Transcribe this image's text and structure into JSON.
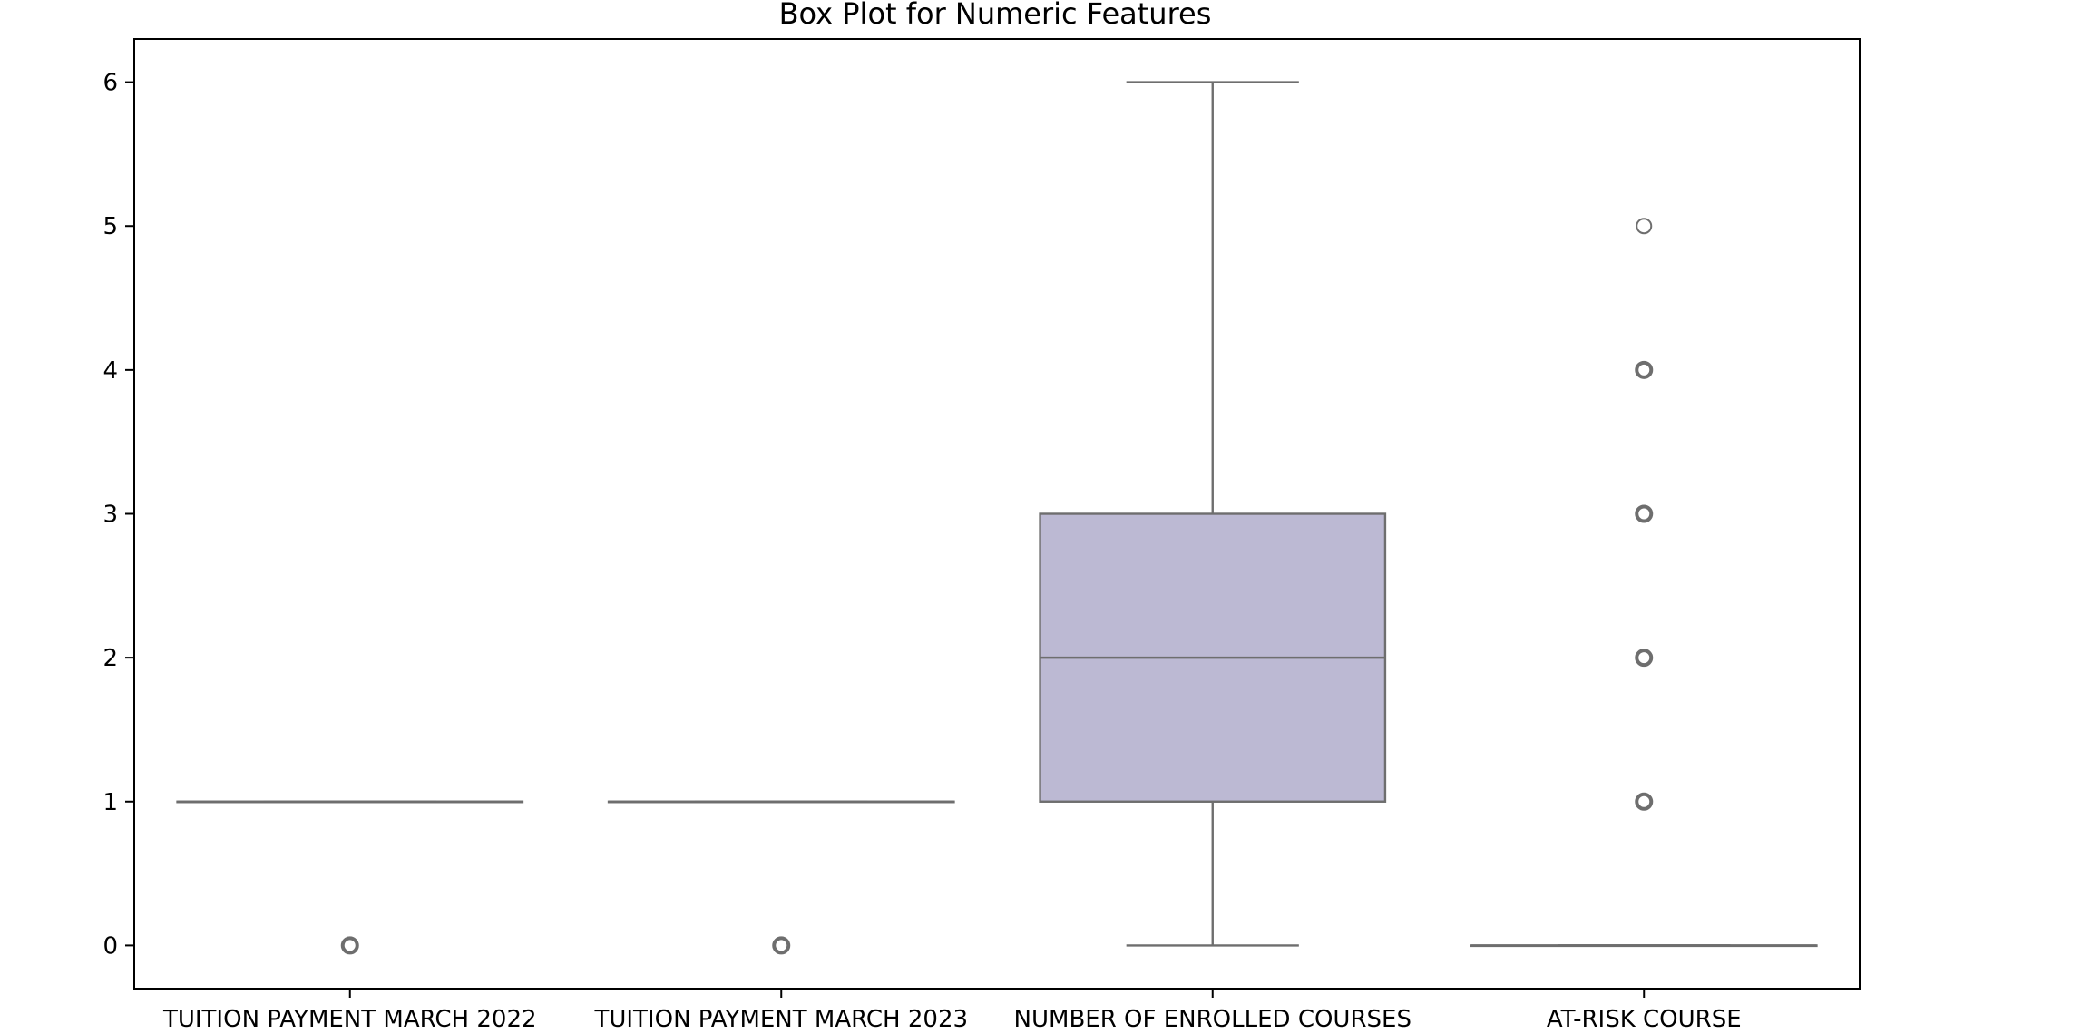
{
  "chart_data": {
    "type": "box",
    "title": "Box Plot for Numeric Features",
    "xlabel": "",
    "ylabel": "",
    "ylim": [
      -0.3,
      6.3
    ],
    "yticks": [
      0,
      1,
      2,
      3,
      4,
      5,
      6
    ],
    "grid": false,
    "box_color": "#bcb9d3",
    "line_color": "#6e6e6e",
    "categories": [
      "TUITION PAYMENT MARCH 2022",
      "TUITION PAYMENT MARCH 2023",
      "NUMBER OF ENROLLED COURSES",
      "AT-RISK COURSE"
    ],
    "boxes": [
      {
        "label": "TUITION PAYMENT MARCH 2022",
        "whisker_low": 1,
        "q1": 1,
        "median": 1,
        "q3": 1,
        "whisker_high": 1,
        "outliers": [
          0
        ]
      },
      {
        "label": "TUITION PAYMENT MARCH 2023",
        "whisker_low": 1,
        "q1": 1,
        "median": 1,
        "q3": 1,
        "whisker_high": 1,
        "outliers": [
          0
        ]
      },
      {
        "label": "NUMBER OF ENROLLED COURSES",
        "whisker_low": 0,
        "q1": 1,
        "median": 2,
        "q3": 3,
        "whisker_high": 6,
        "outliers": []
      },
      {
        "label": "AT-RISK COURSE",
        "whisker_low": 0,
        "q1": 0,
        "median": 0,
        "q3": 0,
        "whisker_high": 0,
        "outliers": [
          1,
          2,
          3,
          4,
          5
        ]
      }
    ]
  }
}
